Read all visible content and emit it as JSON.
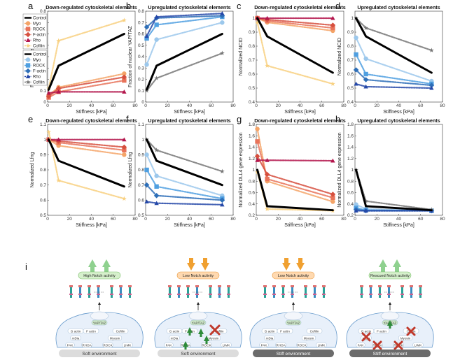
{
  "chart_data": [
    {
      "id": "a",
      "letter": "a",
      "title": "Down-regulated cytoskeletal elements",
      "xlabel": "Stiffness [kPa]",
      "ylabel": "Fraction of nuclear YAP/TAZ",
      "xlim": [
        0,
        80
      ],
      "ylim": [
        0,
        0.8
      ],
      "xticks": [
        0,
        20,
        40,
        60,
        80
      ],
      "yticks": [
        0,
        0.1,
        0.2,
        0.3,
        0.4,
        0.5,
        0.6,
        0.7,
        0.8
      ],
      "x": [
        1,
        10,
        70
      ],
      "series": [
        {
          "name": "Control",
          "color": "#000000",
          "values": [
            0.11,
            0.32,
            0.6
          ]
        },
        {
          "name": "Myo",
          "color": "#f4a468",
          "values": [
            0.06,
            0.13,
            0.25
          ]
        },
        {
          "name": "ROCK",
          "color": "#e8735a",
          "values": [
            0.04,
            0.09,
            0.19
          ]
        },
        {
          "name": "F-actin",
          "color": "#d64f3e",
          "values": [
            0.05,
            0.12,
            0.22
          ]
        },
        {
          "name": "Rho",
          "color": "#b3144b",
          "values": [
            0.08,
            0.09,
            0.09
          ]
        },
        {
          "name": "Cofilin",
          "color": "#f8d080",
          "values": [
            0.12,
            0.54,
            0.72
          ]
        }
      ]
    },
    {
      "id": "b",
      "letter": "b",
      "title": "Upregulated cytoskeletal elements",
      "xlabel": "Stiffness [kPa]",
      "ylabel": "Fraction of nuclear YAP/TAZ",
      "xlim": [
        0,
        80
      ],
      "ylim": [
        0,
        0.8
      ],
      "xticks": [
        0,
        20,
        40,
        60,
        80
      ],
      "yticks": [
        0,
        0.1,
        0.2,
        0.3,
        0.4,
        0.5,
        0.6,
        0.7,
        0.8
      ],
      "x": [
        1,
        10,
        70
      ],
      "series": [
        {
          "name": "Control",
          "color": "#000000",
          "values": [
            0.11,
            0.32,
            0.6
          ]
        },
        {
          "name": "Myo",
          "color": "#9cc8ec",
          "values": [
            0.33,
            0.55,
            0.7
          ]
        },
        {
          "name": "ROCK",
          "color": "#4f9fe0",
          "values": [
            0.56,
            0.68,
            0.75
          ]
        },
        {
          "name": "F-actin",
          "color": "#2e6fb8",
          "values": [
            0.66,
            0.74,
            0.76
          ]
        },
        {
          "name": "Rho",
          "color": "#2548a8",
          "values": [
            0.58,
            0.75,
            0.78
          ]
        },
        {
          "name": "Cofilin",
          "color": "#777777",
          "values": [
            0.1,
            0.21,
            0.43
          ]
        }
      ]
    },
    {
      "id": "c",
      "letter": "c",
      "title": "Down-regulated cytoskeletal elements",
      "xlabel": "Stiffness [kPa]",
      "ylabel": "Normalized NCID",
      "xlim": [
        0,
        80
      ],
      "ylim": [
        0.4,
        1.05
      ],
      "xticks": [
        0,
        20,
        40,
        60,
        80
      ],
      "yticks": [
        0.4,
        0.5,
        0.6,
        0.7,
        0.8,
        0.9,
        1
      ],
      "x": [
        1,
        10,
        70
      ],
      "series": [
        {
          "name": "Control",
          "color": "#000000",
          "values": [
            1.0,
            0.87,
            0.61
          ]
        },
        {
          "name": "Myo",
          "color": "#f4a468",
          "values": [
            1.0,
            0.97,
            0.91
          ]
        },
        {
          "name": "ROCK",
          "color": "#e8735a",
          "values": [
            1.0,
            0.98,
            0.93
          ]
        },
        {
          "name": "F-actin",
          "color": "#d64f3e",
          "values": [
            1.0,
            0.99,
            0.95
          ]
        },
        {
          "name": "Rho",
          "color": "#b3144b",
          "values": [
            1.0,
            1.0,
            1.0
          ]
        },
        {
          "name": "Cofilin",
          "color": "#f8d080",
          "values": [
            0.97,
            0.66,
            0.53
          ]
        }
      ]
    },
    {
      "id": "d",
      "letter": "d",
      "title": "Upregulated cytoskeletal elements",
      "xlabel": "Stiffness [kPa]",
      "ylabel": "Normalized NCID",
      "xlim": [
        0,
        80
      ],
      "ylim": [
        0.4,
        1.05
      ],
      "xticks": [
        0,
        20,
        40,
        60,
        80
      ],
      "yticks": [
        0.4,
        0.5,
        0.6,
        0.7,
        0.8,
        0.9,
        1
      ],
      "x": [
        1,
        10,
        70
      ],
      "series": [
        {
          "name": "Control",
          "color": "#000000",
          "values": [
            1.0,
            0.87,
            0.61
          ]
        },
        {
          "name": "Myo",
          "color": "#9cc8ec",
          "values": [
            0.86,
            0.71,
            0.55
          ]
        },
        {
          "name": "ROCK",
          "color": "#4f9fe0",
          "values": [
            0.74,
            0.6,
            0.53
          ]
        },
        {
          "name": "F-actin",
          "color": "#2e6fb8",
          "values": [
            0.63,
            0.56,
            0.52
          ]
        },
        {
          "name": "Rho",
          "color": "#2548a8",
          "values": [
            0.53,
            0.51,
            0.5
          ]
        },
        {
          "name": "Cofilin",
          "color": "#777777",
          "values": [
            1.0,
            0.93,
            0.77
          ]
        }
      ]
    },
    {
      "id": "e",
      "letter": "e",
      "title": "Down-regulated cytoskeletal elements",
      "xlabel": "Stiffness [kPa]",
      "ylabel": "Normalized Lfng",
      "xlim": [
        0,
        80
      ],
      "ylim": [
        0.5,
        1.1
      ],
      "xticks": [
        0,
        20,
        40,
        60,
        80
      ],
      "yticks": [
        0.5,
        0.6,
        0.7,
        0.8,
        0.9,
        1,
        1.1
      ],
      "x": [
        1,
        10,
        70
      ],
      "series": [
        {
          "name": "Control",
          "color": "#000000",
          "values": [
            1.0,
            0.86,
            0.69
          ]
        },
        {
          "name": "Myo",
          "color": "#f4a468",
          "values": [
            1.0,
            0.96,
            0.9
          ]
        },
        {
          "name": "ROCK",
          "color": "#e8735a",
          "values": [
            1.0,
            0.98,
            0.93
          ]
        },
        {
          "name": "F-actin",
          "color": "#d64f3e",
          "values": [
            1.0,
            0.99,
            0.95
          ]
        },
        {
          "name": "Rho",
          "color": "#b3144b",
          "values": [
            1.0,
            1.0,
            1.0
          ]
        },
        {
          "name": "Cofilin",
          "color": "#f8d080",
          "values": [
            1.05,
            0.73,
            0.61
          ]
        }
      ]
    },
    {
      "id": "f",
      "letter": "f",
      "title": "Upregulated cytoskeletal elements",
      "xlabel": "Stiffness [kPa]",
      "ylabel": "Normalized Lfng",
      "xlim": [
        0,
        80
      ],
      "ylim": [
        0.5,
        1.1
      ],
      "xticks": [
        0,
        20,
        40,
        60,
        80
      ],
      "yticks": [
        0.5,
        0.6,
        0.7,
        0.8,
        0.9,
        1,
        1.1
      ],
      "x": [
        1,
        10,
        70
      ],
      "series": [
        {
          "name": "Control",
          "color": "#000000",
          "values": [
            1.0,
            0.86,
            0.7
          ]
        },
        {
          "name": "Myo",
          "color": "#9cc8ec",
          "values": [
            0.9,
            0.76,
            0.63
          ]
        },
        {
          "name": "ROCK",
          "color": "#4f9fe0",
          "values": [
            0.8,
            0.69,
            0.61
          ]
        },
        {
          "name": "F-actin",
          "color": "#2e6fb8",
          "values": [
            0.7,
            0.63,
            0.6
          ]
        },
        {
          "name": "Rho",
          "color": "#2548a8",
          "values": [
            0.59,
            0.58,
            0.57
          ]
        },
        {
          "name": "Cofilin",
          "color": "#777777",
          "values": [
            1.0,
            0.93,
            0.79
          ]
        }
      ]
    },
    {
      "id": "g",
      "letter": "g",
      "title": "Down-regulated cytoskeletal elements",
      "xlabel": "Stiffness [kPa]",
      "ylabel": "Normalized DLL4 gene expression",
      "xlim": [
        0,
        80
      ],
      "ylim": [
        0.2,
        1.8
      ],
      "xticks": [
        0,
        20,
        40,
        60,
        80
      ],
      "yticks": [
        0.2,
        0.4,
        0.6,
        0.8,
        1,
        1.2,
        1.4,
        1.6,
        1.8
      ],
      "x": [
        1,
        10,
        70
      ],
      "series": [
        {
          "name": "Control",
          "color": "#000000",
          "values": [
            1.0,
            0.36,
            0.29
          ]
        },
        {
          "name": "Myo",
          "color": "#f4a468",
          "values": [
            1.72,
            0.8,
            0.44
          ]
        },
        {
          "name": "ROCK",
          "color": "#e8735a",
          "values": [
            1.5,
            0.84,
            0.51
          ]
        },
        {
          "name": "F-actin",
          "color": "#d64f3e",
          "values": [
            1.24,
            0.92,
            0.57
          ]
        },
        {
          "name": "Rho",
          "color": "#b3144b",
          "values": [
            1.17,
            1.17,
            1.16
          ]
        },
        {
          "name": "Cofilin",
          "color": "#f8d080",
          "values": [
            0.96,
            0.31,
            0.28
          ]
        }
      ]
    },
    {
      "id": "h",
      "letter": "h",
      "title": "Upregulated cytoskeletal elements",
      "xlabel": "Stiffness [kPa]",
      "ylabel": "Normalized DLL4 gene expression",
      "xlim": [
        0,
        80
      ],
      "ylim": [
        0.2,
        1.8
      ],
      "xticks": [
        0,
        20,
        40,
        60,
        80
      ],
      "yticks": [
        0.2,
        0.4,
        0.6,
        0.8,
        1,
        1.2,
        1.4,
        1.6,
        1.8
      ],
      "x": [
        1,
        10,
        70
      ],
      "series": [
        {
          "name": "Control",
          "color": "#000000",
          "values": [
            1.0,
            0.36,
            0.29
          ]
        },
        {
          "name": "Myo",
          "color": "#9cc8ec",
          "values": [
            0.39,
            0.31,
            0.28
          ]
        },
        {
          "name": "ROCK",
          "color": "#4f9fe0",
          "values": [
            0.33,
            0.29,
            0.28
          ]
        },
        {
          "name": "F-actin",
          "color": "#2e6fb8",
          "values": [
            0.3,
            0.28,
            0.28
          ]
        },
        {
          "name": "Rho",
          "color": "#2548a8",
          "values": [
            0.28,
            0.28,
            0.28
          ]
        },
        {
          "name": "Cofilin",
          "color": "#777777",
          "values": [
            1.0,
            0.45,
            0.3
          ]
        }
      ]
    }
  ],
  "legend_down": {
    "entries": [
      "Control",
      "Myo",
      "ROCK",
      "F-actin",
      "Rho",
      "Cofilin"
    ],
    "colors": [
      "#000000",
      "#f4a468",
      "#e8735a",
      "#d64f3e",
      "#b3144b",
      "#f8d080"
    ]
  },
  "legend_up": {
    "entries": [
      "Control",
      "Myo",
      "ROCK",
      "F-actin",
      "Rho",
      "Cofilin"
    ],
    "colors": [
      "#000000",
      "#9cc8ec",
      "#4f9fe0",
      "#2e6fb8",
      "#2548a8",
      "#777777"
    ]
  },
  "schematic": {
    "letter": "i",
    "cells": [
      {
        "state": "High Notch activity",
        "arrow": "up",
        "env": "Soft environment",
        "env_dark": false,
        "modified": false
      },
      {
        "state": "Low Notch activity",
        "arrow": "down",
        "env": "Soft environment",
        "env_dark": false,
        "modified": true,
        "marks": "up"
      },
      {
        "state": "Low Notch activity",
        "arrow": "down",
        "env": "Stiff environment",
        "env_dark": true,
        "modified": false
      },
      {
        "state": "Rescued Notch activity",
        "arrow": "up",
        "env": "Stiff environment",
        "env_dark": true,
        "modified": true,
        "marks": "cross"
      }
    ],
    "molecules": [
      "YAP/TAZ",
      "G actin",
      "F actin",
      "Cofilin",
      "mDia",
      "Myosin",
      "FAK",
      "RHOA",
      "ROCK",
      "LIMK"
    ],
    "colors": {
      "up_arrow": "#8fd18f",
      "down_arrow": "#f0a030",
      "state_green": "#d6f0cc",
      "state_orange": "#ffd9b0",
      "cross": "#c0392b",
      "mark_up": "#2e8b3a"
    }
  }
}
